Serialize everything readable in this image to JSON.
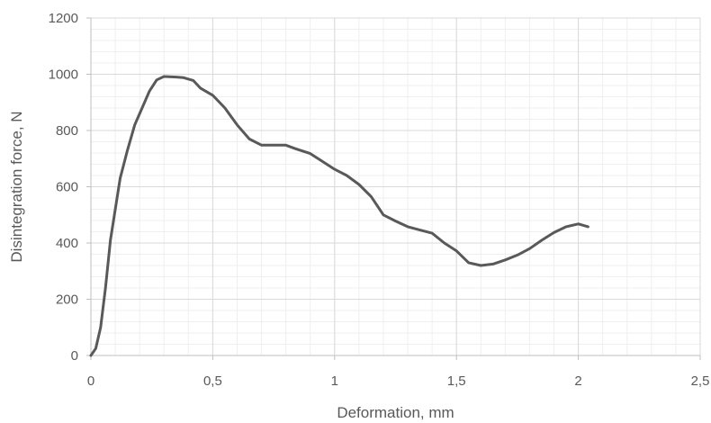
{
  "chart_data": {
    "type": "line",
    "title": "",
    "xlabel": "Deformation, mm",
    "ylabel": "Disintegration force, N",
    "xlim": [
      0,
      2.5
    ],
    "ylim": [
      0,
      1200
    ],
    "x_ticks": [
      {
        "value": 0,
        "label": "0"
      },
      {
        "value": 0.5,
        "label": "0,5"
      },
      {
        "value": 1,
        "label": "1"
      },
      {
        "value": 1.5,
        "label": "1,5"
      },
      {
        "value": 2,
        "label": "2"
      },
      {
        "value": 2.5,
        "label": "2,5"
      }
    ],
    "y_ticks": [
      {
        "value": 0,
        "label": "0"
      },
      {
        "value": 200,
        "label": "200"
      },
      {
        "value": 400,
        "label": "400"
      },
      {
        "value": 600,
        "label": "600"
      },
      {
        "value": 800,
        "label": "800"
      },
      {
        "value": 1000,
        "label": "1000"
      },
      {
        "value": 1200,
        "label": "1200"
      }
    ],
    "grid": {
      "major": true,
      "minor": true,
      "minor_x_step": 0.1,
      "minor_y_step": 40
    },
    "legend": "none",
    "series": [
      {
        "color": "#595959",
        "points": [
          [
            0.0,
            0
          ],
          [
            0.02,
            25
          ],
          [
            0.04,
            100
          ],
          [
            0.06,
            240
          ],
          [
            0.08,
            410
          ],
          [
            0.1,
            520
          ],
          [
            0.12,
            630
          ],
          [
            0.15,
            730
          ],
          [
            0.18,
            820
          ],
          [
            0.21,
            880
          ],
          [
            0.24,
            940
          ],
          [
            0.27,
            980
          ],
          [
            0.3,
            992
          ],
          [
            0.35,
            990
          ],
          [
            0.38,
            988
          ],
          [
            0.42,
            978
          ],
          [
            0.45,
            950
          ],
          [
            0.5,
            925
          ],
          [
            0.55,
            880
          ],
          [
            0.6,
            820
          ],
          [
            0.65,
            770
          ],
          [
            0.7,
            748
          ],
          [
            0.75,
            748
          ],
          [
            0.8,
            748
          ],
          [
            0.84,
            735
          ],
          [
            0.9,
            718
          ],
          [
            0.95,
            690
          ],
          [
            1.0,
            662
          ],
          [
            1.05,
            640
          ],
          [
            1.1,
            608
          ],
          [
            1.15,
            565
          ],
          [
            1.2,
            500
          ],
          [
            1.25,
            478
          ],
          [
            1.3,
            458
          ],
          [
            1.35,
            446
          ],
          [
            1.4,
            435
          ],
          [
            1.45,
            400
          ],
          [
            1.5,
            372
          ],
          [
            1.55,
            330
          ],
          [
            1.6,
            320
          ],
          [
            1.65,
            325
          ],
          [
            1.7,
            340
          ],
          [
            1.75,
            357
          ],
          [
            1.8,
            380
          ],
          [
            1.85,
            410
          ],
          [
            1.9,
            437
          ],
          [
            1.95,
            458
          ],
          [
            2.0,
            468
          ],
          [
            2.04,
            458
          ]
        ]
      }
    ],
    "colors": {
      "line": "#595959",
      "grid_major": "#d9d9d9",
      "grid_minor": "#efefef",
      "axis": "#bfbfbf",
      "text": "#595959"
    }
  }
}
